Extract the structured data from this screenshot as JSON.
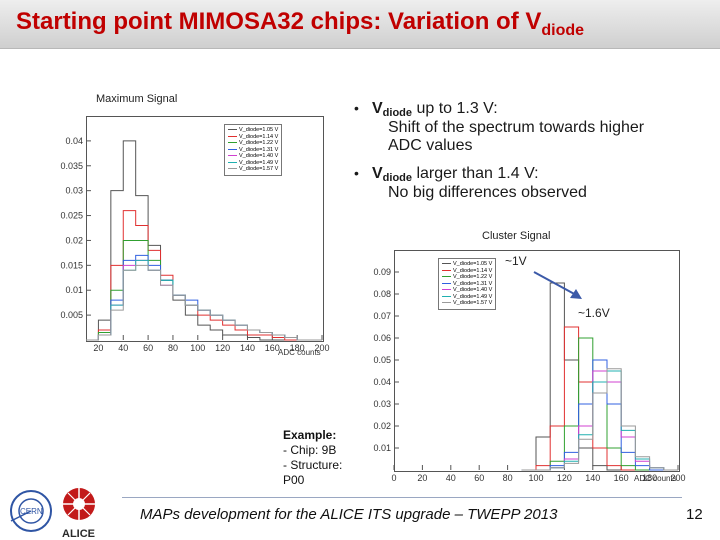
{
  "title": {
    "main": "Starting point MIMOSA32 chips: Variation of V",
    "sub": "diode"
  },
  "bullets": [
    {
      "symbol": "V",
      "sub": "diode",
      "text": " up to 1.3 V:",
      "line2": "Shift of the spectrum towards higher",
      "line3": "ADC values"
    },
    {
      "symbol": "V",
      "sub": "diode",
      "text": " larger than 1.4 V:",
      "line2": "No big differences observed"
    }
  ],
  "annotations": {
    "low": "~1V",
    "high": "~1.6V"
  },
  "example": {
    "heading": "Example:",
    "lines": [
      "- Chip: 9B",
      "- Structure:",
      "P00"
    ]
  },
  "footer": "MAPs development for the ALICE ITS upgrade – TWEPP 2013",
  "page_number": "12",
  "logos": {
    "alice": "ALICE",
    "cern": "CERN"
  },
  "chart_data": [
    {
      "type": "line",
      "title": "Maximum Signal",
      "xlabel": "ADC counts",
      "ylabel": "",
      "xlim": [
        10,
        200
      ],
      "ylim": [
        0,
        0.045
      ],
      "x_ticks": [
        "20",
        "40",
        "60",
        "80",
        "100",
        "120",
        "140",
        "160",
        "180",
        "200"
      ],
      "y_ticks": [
        "0.04",
        "0.035",
        "0.03",
        "0.025",
        "0.02",
        "0.015",
        "0.01",
        "0.005"
      ],
      "legend": [
        "V_diode=1.05 V",
        "V_diode=1.14 V",
        "V_diode=1.22 V",
        "V_diode=1.31 V",
        "V_diode=1.40 V",
        "V_diode=1.49 V",
        "V_diode=1.57 V"
      ],
      "legend_position": "top-right",
      "x": [
        10,
        20,
        30,
        40,
        50,
        60,
        70,
        80,
        90,
        100,
        110,
        120,
        130,
        140,
        150,
        160,
        170,
        180,
        190,
        200
      ],
      "series": [
        {
          "color": "#555555",
          "values": [
            0,
            0.004,
            0.03,
            0.04,
            0.029,
            0.019,
            0.012,
            0.008,
            0.005,
            0.003,
            0.002,
            0.001,
            0.001,
            0.0005,
            0,
            0,
            0,
            0,
            0,
            0
          ]
        },
        {
          "color": "#e03030",
          "values": [
            0,
            0.002,
            0.015,
            0.026,
            0.023,
            0.018,
            0.013,
            0.009,
            0.007,
            0.005,
            0.004,
            0.003,
            0.002,
            0.001,
            0.001,
            0.0005,
            0,
            0,
            0,
            0
          ]
        },
        {
          "color": "#30a030",
          "values": [
            0,
            0.0015,
            0.01,
            0.02,
            0.02,
            0.016,
            0.012,
            0.009,
            0.007,
            0.006,
            0.005,
            0.004,
            0.003,
            0.002,
            0.0015,
            0.001,
            0.0005,
            0,
            0,
            0
          ]
        },
        {
          "color": "#3060e0",
          "values": [
            0,
            0.001,
            0.008,
            0.016,
            0.017,
            0.015,
            0.012,
            0.009,
            0.008,
            0.006,
            0.005,
            0.004,
            0.003,
            0.002,
            0.0015,
            0.001,
            0.0005,
            0,
            0,
            0
          ]
        },
        {
          "color": "#d040d0",
          "values": [
            0,
            0.001,
            0.007,
            0.015,
            0.016,
            0.014,
            0.011,
            0.009,
            0.007,
            0.006,
            0.005,
            0.004,
            0.003,
            0.002,
            0.0015,
            0.001,
            0.0005,
            0,
            0,
            0
          ]
        },
        {
          "color": "#20b0b0",
          "values": [
            0,
            0.001,
            0.007,
            0.014,
            0.016,
            0.014,
            0.012,
            0.009,
            0.007,
            0.006,
            0.005,
            0.004,
            0.003,
            0.002,
            0.0015,
            0.001,
            0.0005,
            0,
            0,
            0
          ]
        },
        {
          "color": "#9a9a9a",
          "values": [
            0,
            0.001,
            0.006,
            0.014,
            0.015,
            0.014,
            0.011,
            0.009,
            0.007,
            0.006,
            0.005,
            0.004,
            0.003,
            0.002,
            0.0015,
            0.001,
            0.0005,
            0,
            0,
            0
          ]
        }
      ]
    },
    {
      "type": "line",
      "title": "Cluster Signal",
      "xlabel": "ADC counts",
      "ylabel": "",
      "xlim": [
        0,
        200
      ],
      "ylim": [
        0,
        0.1
      ],
      "x_ticks": [
        "0",
        "20",
        "40",
        "60",
        "80",
        "100",
        "120",
        "140",
        "160",
        "180",
        "200"
      ],
      "y_ticks": [
        "0.09",
        "0.08",
        "0.07",
        "0.06",
        "0.05",
        "0.04",
        "0.03",
        "0.02",
        "0.01"
      ],
      "legend": [
        "V_diode=1.05 V",
        "V_diode=1.14 V",
        "V_diode=1.22 V",
        "V_diode=1.31 V",
        "V_diode=1.40 V",
        "V_diode=1.49 V",
        "V_diode=1.57 V"
      ],
      "legend_position": "top-left",
      "x": [
        90,
        100,
        110,
        120,
        130,
        140,
        150,
        160,
        170,
        180,
        190,
        200
      ],
      "series": [
        {
          "color": "#555555",
          "values": [
            0,
            0.015,
            0.085,
            0.05,
            0.01,
            0.002,
            0,
            0,
            0,
            0,
            0,
            0
          ]
        },
        {
          "color": "#e03030",
          "values": [
            0,
            0.002,
            0.02,
            0.065,
            0.04,
            0.01,
            0.002,
            0,
            0,
            0,
            0,
            0
          ]
        },
        {
          "color": "#30a030",
          "values": [
            0,
            0,
            0.004,
            0.02,
            0.06,
            0.035,
            0.01,
            0.002,
            0,
            0,
            0,
            0
          ]
        },
        {
          "color": "#3060e0",
          "values": [
            0,
            0,
            0.002,
            0.008,
            0.03,
            0.05,
            0.03,
            0.008,
            0.002,
            0,
            0,
            0
          ]
        },
        {
          "color": "#d040d0",
          "values": [
            0,
            0,
            0.001,
            0.005,
            0.02,
            0.045,
            0.04,
            0.015,
            0.004,
            0.001,
            0,
            0
          ]
        },
        {
          "color": "#20b0b0",
          "values": [
            0,
            0,
            0.001,
            0.004,
            0.016,
            0.04,
            0.045,
            0.018,
            0.005,
            0.001,
            0,
            0
          ]
        },
        {
          "color": "#9a9a9a",
          "values": [
            0,
            0,
            0.001,
            0.003,
            0.014,
            0.035,
            0.046,
            0.02,
            0.006,
            0.001,
            0,
            0
          ]
        }
      ]
    }
  ]
}
